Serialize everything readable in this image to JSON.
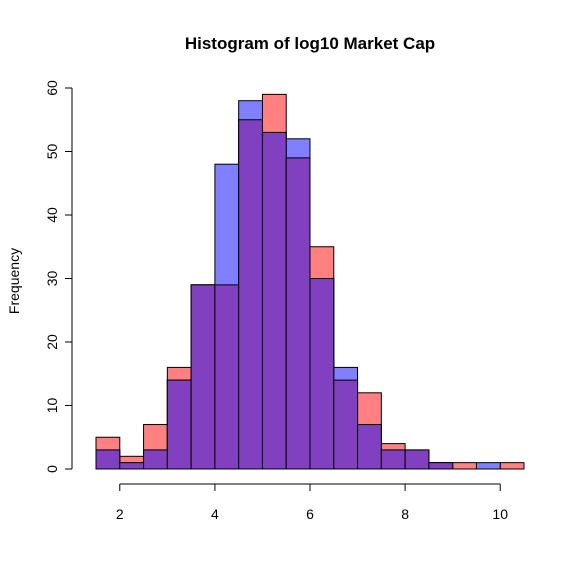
{
  "chart_data": {
    "type": "bar",
    "subtype": "overlaid-histogram",
    "title": "Histogram of log10 Market Cap",
    "xlabel": "",
    "ylabel": "Frequency",
    "xlim": [
      1.5,
      10.5
    ],
    "ylim": [
      0,
      60
    ],
    "xticks": [
      2,
      4,
      6,
      8,
      10
    ],
    "yticks": [
      0,
      10,
      20,
      30,
      40,
      50,
      60
    ],
    "bin_edges": [
      1.5,
      2.0,
      2.5,
      3.0,
      3.5,
      4.0,
      4.5,
      5.0,
      5.5,
      6.0,
      6.5,
      7.0,
      7.5,
      8.0,
      8.5,
      9.0,
      9.5,
      10.0,
      10.5
    ],
    "series": [
      {
        "name": "red",
        "color": "#ff8080",
        "values": [
          5,
          2,
          7,
          16,
          29,
          29,
          55,
          59,
          49,
          35,
          14,
          12,
          4,
          3,
          1,
          1,
          0,
          1
        ]
      },
      {
        "name": "blue",
        "color": "#8080ff",
        "values": [
          3,
          1,
          3,
          14,
          29,
          48,
          58,
          53,
          52,
          30,
          16,
          7,
          3,
          3,
          1,
          0,
          1,
          0
        ]
      }
    ],
    "overlap_color": "#8040c0"
  }
}
